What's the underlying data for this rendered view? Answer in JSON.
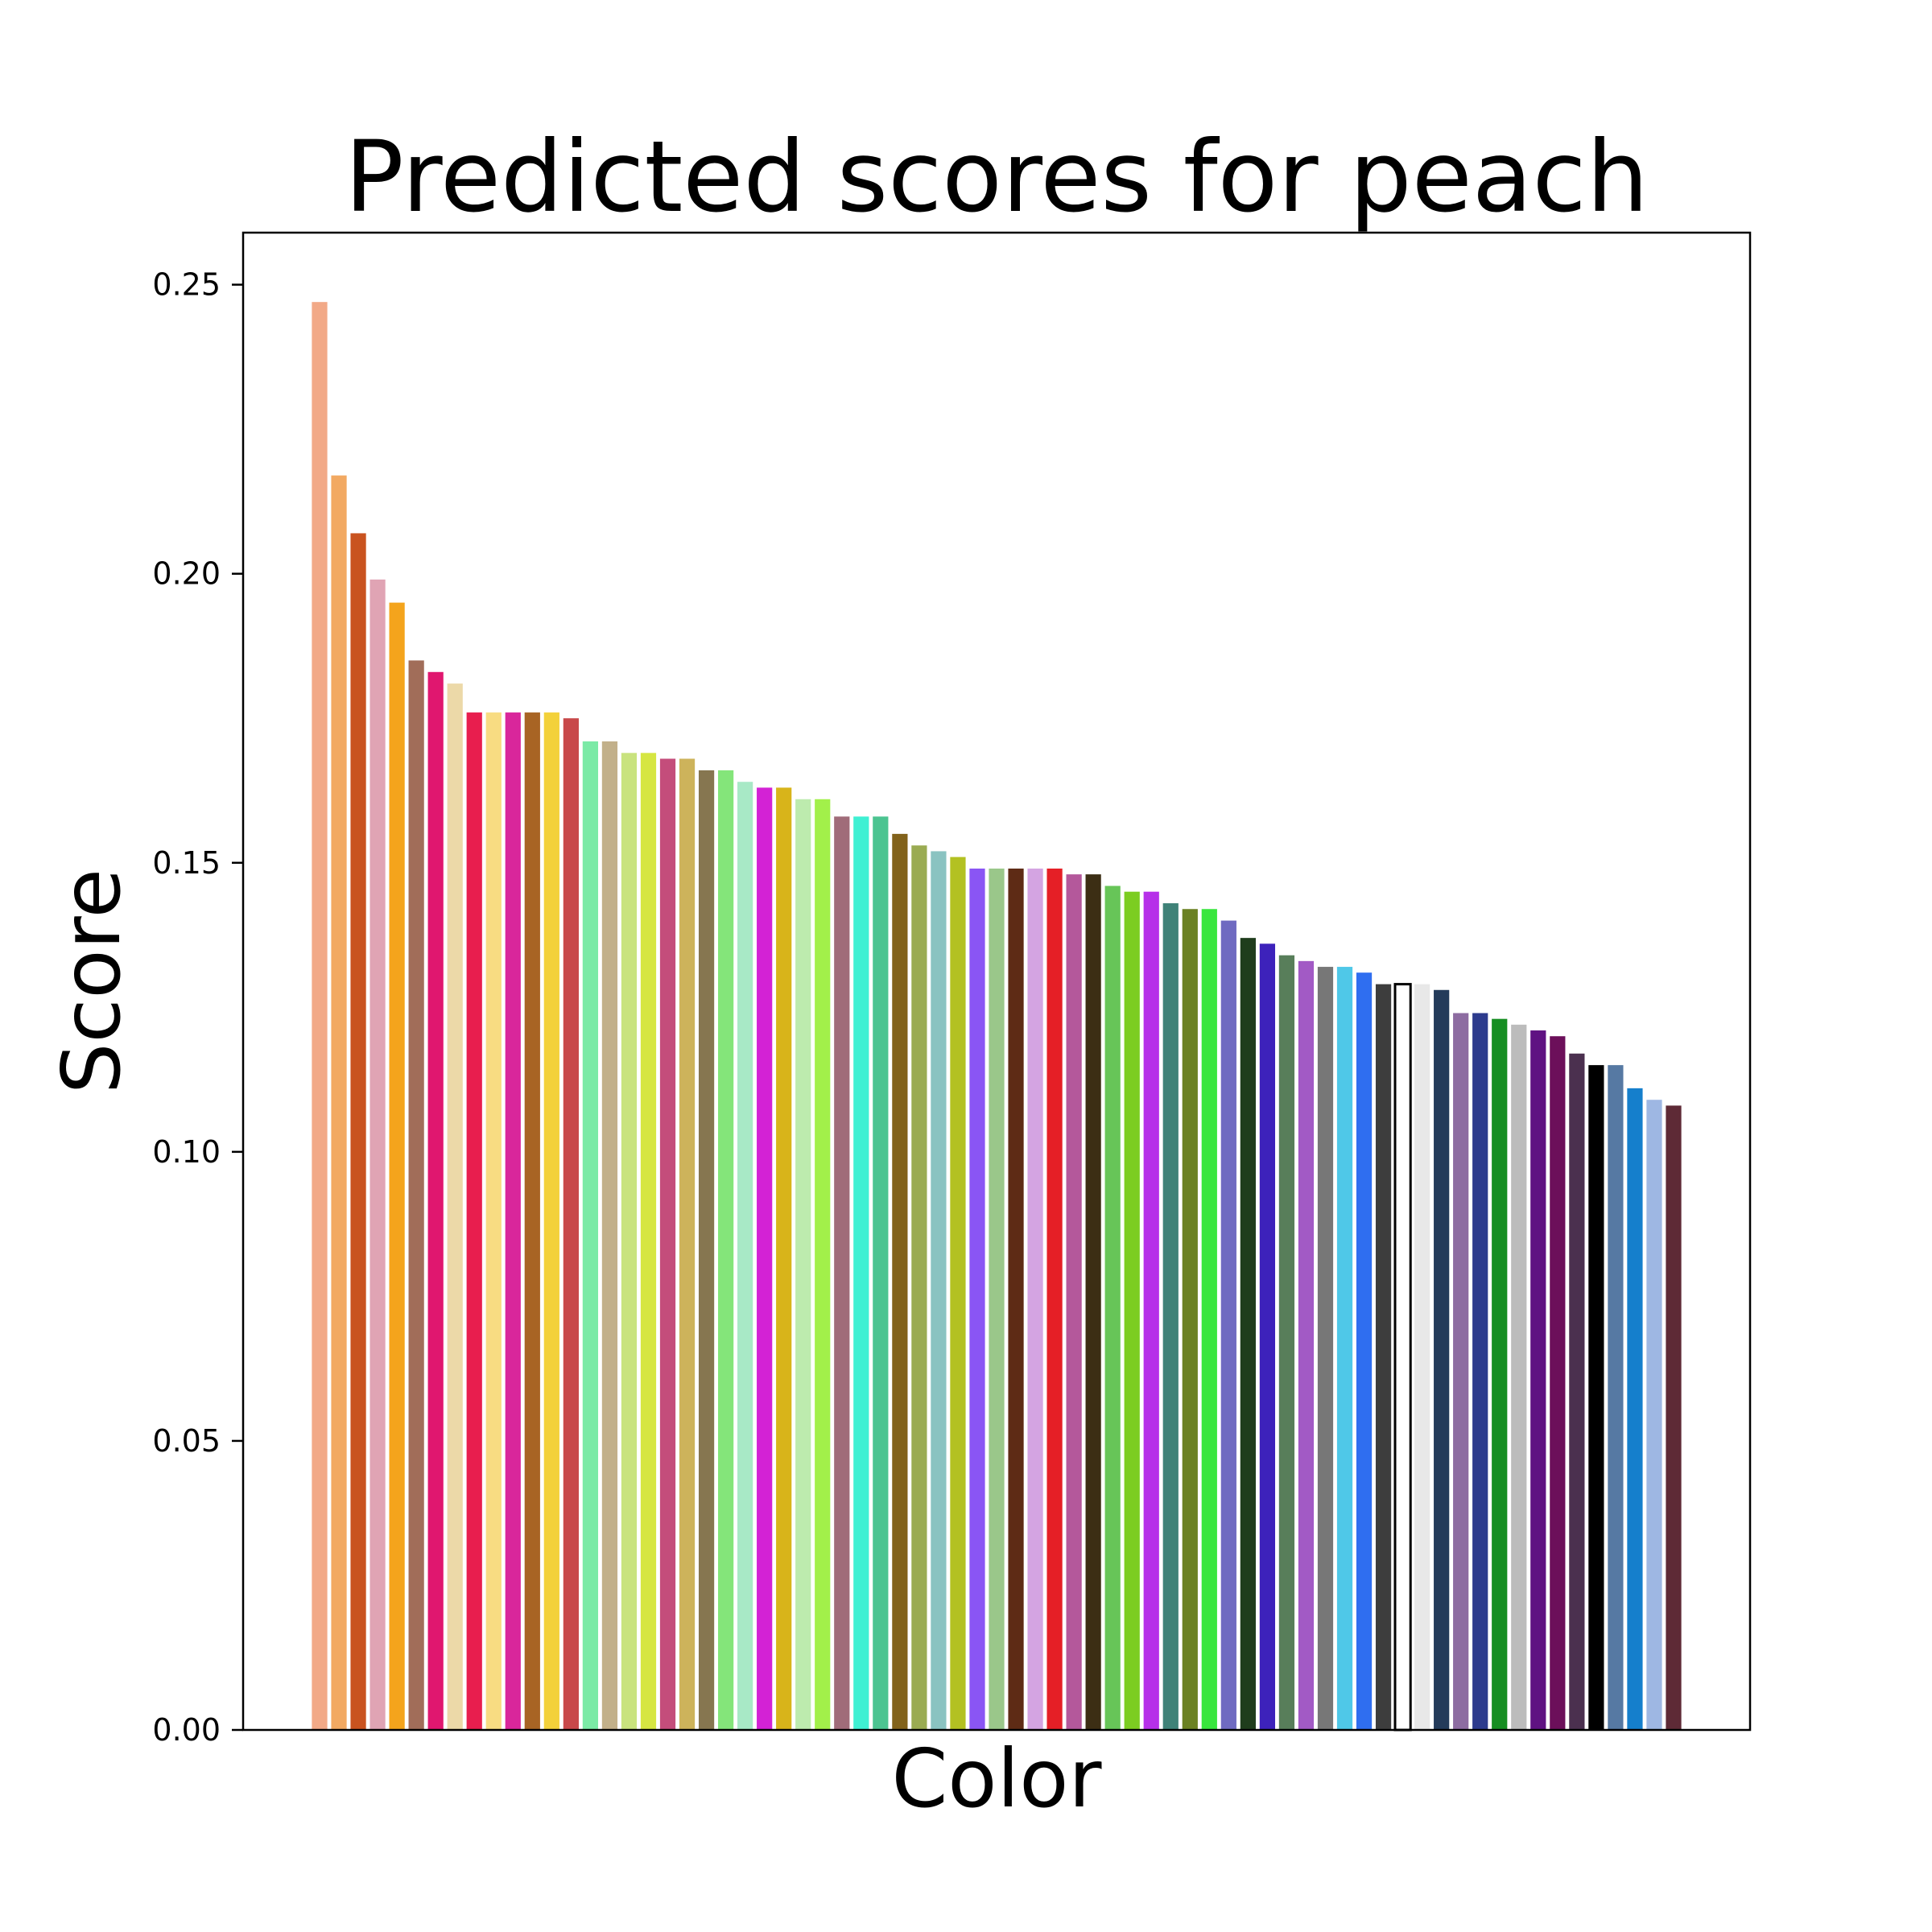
{
  "chart_data": {
    "type": "bar",
    "title": "Predicted scores for peach",
    "xlabel": "Color",
    "ylabel": "Score",
    "ylim": [
      0,
      0.259
    ],
    "yticks": [
      "0.00",
      "0.05",
      "0.10",
      "0.15",
      "0.20",
      "0.25"
    ],
    "grid": false,
    "legend": "none",
    "values": [
      0.247,
      0.217,
      0.207,
      0.199,
      0.195,
      0.185,
      0.183,
      0.181,
      0.176,
      0.176,
      0.176,
      0.176,
      0.176,
      0.175,
      0.171,
      0.171,
      0.169,
      0.169,
      0.168,
      0.168,
      0.166,
      0.166,
      0.164,
      0.163,
      0.163,
      0.161,
      0.161,
      0.158,
      0.158,
      0.158,
      0.155,
      0.153,
      0.152,
      0.151,
      0.149,
      0.149,
      0.149,
      0.149,
      0.149,
      0.148,
      0.148,
      0.146,
      0.145,
      0.145,
      0.143,
      0.142,
      0.142,
      0.14,
      0.137,
      0.136,
      0.134,
      0.133,
      0.132,
      0.132,
      0.131,
      0.129,
      0.129,
      0.129,
      0.128,
      0.124,
      0.124,
      0.123,
      0.122,
      0.121,
      0.12,
      0.117,
      0.115,
      0.115,
      0.111,
      0.109,
      0.108
    ],
    "colors": [
      "#f2a987",
      "#f2a962",
      "#c9531f",
      "#e0a4b4",
      "#f4a41c",
      "#a16d59",
      "#e0176f",
      "#ecd9a8",
      "#e81e4e",
      "#f8dc82",
      "#d9269b",
      "#a86424",
      "#f3d13a",
      "#c8484a",
      "#7beaa6",
      "#c2b08a",
      "#c9e37e",
      "#d6e642",
      "#c44d7b",
      "#cdb35b",
      "#867650",
      "#84e57a",
      "#a8e9c6",
      "#d322d5",
      "#d8b41a",
      "#bdebae",
      "#a2f04a",
      "#a06c79",
      "#3ff0d3",
      "#4cc491",
      "#82621b",
      "#9aab52",
      "#8ac3c1",
      "#b3c122",
      "#8a55f4",
      "#9ac78a",
      "#5e2b15",
      "#d4a4e2",
      "#e51f26",
      "#b4589b",
      "#3c2e14",
      "#67c558",
      "#7ccd21",
      "#b630e9",
      "#3f8278",
      "#6b8123",
      "#39e63d",
      "#6f6ac1",
      "#1f3d1c",
      "#3d22bb",
      "#587e5a",
      "#a25ac5",
      "#777777",
      "#4fc8e8",
      "#2f6ef0",
      "#3d3d3d",
      "#ffffff",
      "#e8e8e8",
      "#243b5a",
      "#8d6ca1",
      "#2d3b8d",
      "#168e22",
      "#bcbcbc",
      "#5f1282",
      "#6c0f5a",
      "#4b304f",
      "#000000",
      "#5679a3",
      "#157fcc",
      "#9eb7e3",
      "#5e2a36"
    ],
    "outlined": [
      56
    ]
  }
}
